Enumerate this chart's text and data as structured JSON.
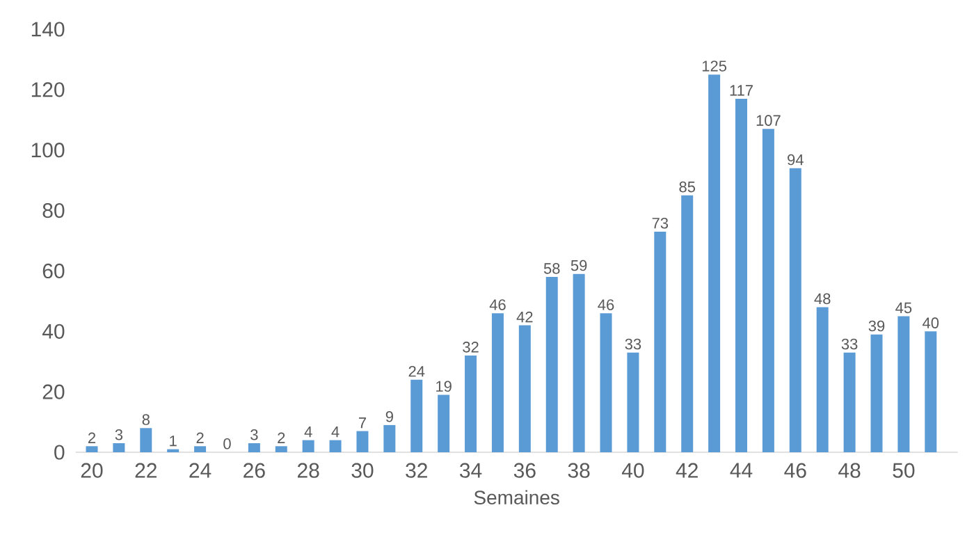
{
  "chart_data": {
    "type": "bar",
    "xlabel": "Semaines",
    "categories": [
      "20",
      null,
      "22",
      null,
      "24",
      null,
      "26",
      null,
      "28",
      null,
      "30",
      null,
      "32",
      null,
      "34",
      null,
      "36",
      null,
      "38",
      null,
      "40",
      null,
      "42",
      null,
      "44",
      null,
      "46",
      null,
      "48",
      null,
      "50",
      null
    ],
    "values": [
      2,
      3,
      8,
      1,
      2,
      0,
      3,
      2,
      4,
      4,
      7,
      9,
      24,
      19,
      32,
      46,
      42,
      58,
      59,
      46,
      33,
      73,
      85,
      125,
      117,
      107,
      94,
      48,
      33,
      39,
      45,
      40
    ],
    "color": "#5b9bd5",
    "ylim": [
      0,
      140
    ],
    "yticks": [
      0,
      20,
      40,
      60,
      80,
      100,
      120,
      140
    ],
    "data_labels": true
  }
}
